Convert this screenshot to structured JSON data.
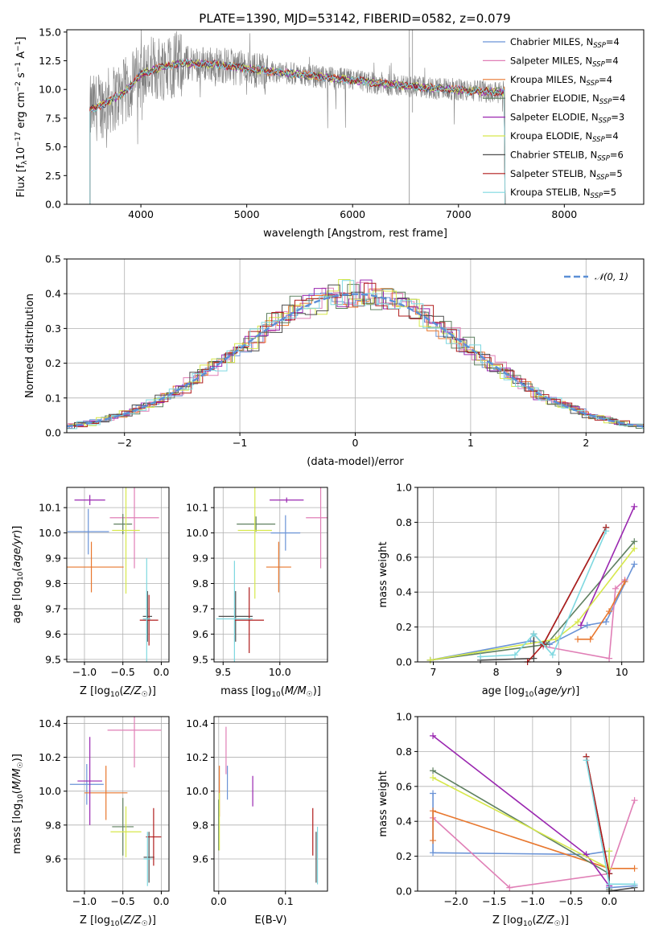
{
  "figure_title": "PLATE=1390, MJD=53142, FIBERID=0582, z=0.079",
  "series": [
    {
      "key": "chabrier_miles",
      "color": "#6a93d6",
      "label_base": "Chabrier MILES, N",
      "label_sub": "SSP",
      "label_tail": "=4"
    },
    {
      "key": "salpeter_miles",
      "color": "#e07fb6",
      "label_base": "Salpeter MILES, N",
      "label_sub": "SSP",
      "label_tail": "=4"
    },
    {
      "key": "kroupa_miles",
      "color": "#e8772e",
      "label_base": "Kroupa MILES, N",
      "label_sub": "SSP",
      "label_tail": "=4"
    },
    {
      "key": "chabrier_elodie",
      "color": "#5f8060",
      "label_base": "Chabrier ELODIE, N",
      "label_sub": "SSP",
      "label_tail": "=4"
    },
    {
      "key": "salpeter_elodie",
      "color": "#9a27b0",
      "label_base": "Salpeter ELODIE, N",
      "label_sub": "SSP",
      "label_tail": "=3"
    },
    {
      "key": "kroupa_elodie",
      "color": "#d7e84c",
      "label_base": "Kroupa ELODIE, N",
      "label_sub": "SSP",
      "label_tail": "=4"
    },
    {
      "key": "chabrier_stelib",
      "color": "#4d4d4d",
      "label_base": "Chabrier STELIB, N",
      "label_sub": "SSP",
      "label_tail": "=6"
    },
    {
      "key": "salpeter_stelib",
      "color": "#b01c1c",
      "label_base": "Salpeter STELIB, N",
      "label_sub": "SSP",
      "label_tail": "=5"
    },
    {
      "key": "kroupa_stelib",
      "color": "#7ed8e0",
      "label_base": "Kroupa STELIB, N",
      "label_sub": "SSP",
      "label_tail": "=5"
    }
  ],
  "chart_data": [
    {
      "id": "spectrum",
      "type": "line",
      "title": "PLATE=1390, MJD=53142, FIBERID=0582, z=0.079",
      "xlabel": "wavelength [Angstrom, rest frame]",
      "ylabel": "Flux [f_λ 10^-17 erg cm^-2 s^-1 A^-1]",
      "xlim": [
        3300,
        8750
      ],
      "ylim": [
        0,
        15.2
      ],
      "xticks": [
        4000,
        5000,
        6000,
        7000,
        8000
      ],
      "yticks": [
        0.0,
        2.5,
        5.0,
        7.5,
        10.0,
        12.5,
        15.0
      ],
      "observed_color": "#808080",
      "continuum_knots": [
        [
          3520,
          8.2
        ],
        [
          3700,
          9.0
        ],
        [
          3850,
          9.8
        ],
        [
          4000,
          11.3
        ],
        [
          4200,
          12.0
        ],
        [
          4400,
          12.3
        ],
        [
          4700,
          12.2
        ],
        [
          5000,
          11.8
        ],
        [
          5300,
          11.5
        ],
        [
          5600,
          11.2
        ],
        [
          5900,
          10.9
        ],
        [
          6200,
          10.6
        ],
        [
          6500,
          10.3
        ],
        [
          6800,
          10.1
        ],
        [
          7100,
          9.9
        ],
        [
          7400,
          9.8
        ]
      ],
      "model_wavelength_range": [
        3520,
        7440
      ],
      "observed_wavelength_range": [
        3520,
        7440
      ],
      "legend_loc": "upper right"
    },
    {
      "id": "residuals",
      "type": "line",
      "xlabel": "(data-model)/error",
      "ylabel": "Normed distribution",
      "xlim": [
        -2.5,
        2.5
      ],
      "ylim": [
        0,
        0.5
      ],
      "xticks": [
        -2,
        -1,
        0,
        1,
        2
      ],
      "xtick_labels": [
        "−2",
        "−1",
        "0",
        "1",
        "2"
      ],
      "yticks": [
        0.0,
        0.1,
        0.2,
        0.3,
        0.4,
        0.5
      ],
      "reference": {
        "name": "𝒩(0, 1)",
        "mean": 0,
        "sigma": 1,
        "color": "#5b8fd6",
        "style": "dashed"
      },
      "bin_width": 0.1,
      "grid": true,
      "legend_loc": "upper right"
    },
    {
      "id": "age_vs_Z",
      "type": "scatter",
      "xlabel": "Z [log10(Z/Z☉)]",
      "ylabel": "age [log10(age/yr)]",
      "xlim": [
        -1.23,
        0.1
      ],
      "ylim": [
        9.49,
        10.18
      ],
      "xticks": [
        -1.0,
        -0.5,
        0.0
      ],
      "xtick_labels": [
        "−1.0",
        "−0.5",
        "0.0"
      ],
      "yticks": [
        9.5,
        9.6,
        9.7,
        9.8,
        9.9,
        10.0,
        10.1
      ],
      "grid": true,
      "points": [
        {
          "series": "chabrier_miles",
          "x": -0.95,
          "xerr": 0.27,
          "y": 10.005,
          "yerr": 0.09
        },
        {
          "series": "salpeter_miles",
          "x": -0.35,
          "xerr": 0.32,
          "y": 10.06,
          "yerr": 0.2
        },
        {
          "series": "kroupa_miles",
          "x": -0.91,
          "xerr": 0.42,
          "y": 9.865,
          "yerr": 0.1
        },
        {
          "series": "chabrier_elodie",
          "x": -0.5,
          "xerr": 0.12,
          "y": 10.035,
          "yerr": 0.04
        },
        {
          "series": "salpeter_elodie",
          "x": -0.93,
          "xerr": 0.2,
          "y": 10.13,
          "yerr": 0.02
        },
        {
          "series": "kroupa_elodie",
          "x": -0.46,
          "xerr": 0.18,
          "y": 10.01,
          "yerr": 0.25
        },
        {
          "series": "chabrier_stelib",
          "x": -0.18,
          "xerr": 0.06,
          "y": 9.67,
          "yerr": 0.1
        },
        {
          "series": "salpeter_stelib",
          "x": -0.16,
          "xerr": 0.12,
          "y": 9.655,
          "yerr": 0.1
        },
        {
          "series": "kroupa_stelib",
          "x": -0.19,
          "xerr": 0.05,
          "y": 9.66,
          "yerr": 0.24
        }
      ]
    },
    {
      "id": "age_vs_mass",
      "type": "scatter",
      "xlabel": "mass [log10(M/M☉)]",
      "ylabel": "",
      "xlim": [
        9.42,
        10.42
      ],
      "ylim": [
        9.49,
        10.18
      ],
      "xticks": [
        9.5,
        10.0
      ],
      "xtick_labels": [
        "9.5",
        "10.0"
      ],
      "yticks": [
        9.5,
        9.6,
        9.7,
        9.8,
        9.9,
        10.0,
        10.1
      ],
      "grid": true,
      "points": [
        {
          "series": "chabrier_miles",
          "x": 10.05,
          "xerr": 0.13,
          "y": 10.0,
          "yerr": 0.07
        },
        {
          "series": "salpeter_miles",
          "x": 10.36,
          "xerr": 0.13,
          "y": 10.06,
          "yerr": 0.2
        },
        {
          "series": "kroupa_miles",
          "x": 9.99,
          "xerr": 0.11,
          "y": 9.865,
          "yerr": 0.1
        },
        {
          "series": "chabrier_elodie",
          "x": 9.79,
          "xerr": 0.17,
          "y": 10.035,
          "yerr": 0.03
        },
        {
          "series": "salpeter_elodie",
          "x": 10.06,
          "xerr": 0.15,
          "y": 10.13,
          "yerr": 0.01
        },
        {
          "series": "kroupa_elodie",
          "x": 9.78,
          "xerr": 0.15,
          "y": 10.01,
          "yerr": 0.27
        },
        {
          "series": "chabrier_stelib",
          "x": 9.61,
          "xerr": 0.15,
          "y": 9.67,
          "yerr": 0.1
        },
        {
          "series": "salpeter_stelib",
          "x": 9.73,
          "xerr": 0.13,
          "y": 9.655,
          "yerr": 0.13
        },
        {
          "series": "kroupa_stelib",
          "x": 9.6,
          "xerr": 0.16,
          "y": 9.66,
          "yerr": 0.23
        }
      ]
    },
    {
      "id": "massweight_vs_age",
      "type": "line",
      "xlabel": "age [log10(age/yr)]",
      "ylabel": "mass weight",
      "xlim": [
        6.75,
        10.35
      ],
      "ylim": [
        0,
        1
      ],
      "xticks": [
        7,
        8,
        9,
        10
      ],
      "yticks": [
        0.0,
        0.2,
        0.4,
        0.6,
        0.8,
        1.0
      ],
      "grid": true,
      "lines": [
        {
          "series": "chabrier_miles",
          "points": [
            [
              6.95,
              0.01
            ],
            [
              8.55,
              0.12
            ],
            [
              8.85,
              0.1
            ],
            [
              9.45,
              0.21
            ],
            [
              9.75,
              0.23
            ],
            [
              10.2,
              0.56
            ]
          ]
        },
        {
          "series": "salpeter_miles",
          "points": [
            [
              8.75,
              0.09
            ],
            [
              9.8,
              0.02
            ],
            [
              9.9,
              0.42
            ],
            [
              10.05,
              0.47
            ]
          ]
        },
        {
          "series": "kroupa_miles",
          "points": [
            [
              9.3,
              0.13
            ],
            [
              9.5,
              0.13
            ],
            [
              9.8,
              0.29
            ],
            [
              10.05,
              0.46
            ]
          ]
        },
        {
          "series": "chabrier_elodie",
          "points": [
            [
              6.95,
              0.01
            ],
            [
              8.8,
              0.1
            ],
            [
              10.2,
              0.69
            ]
          ]
        },
        {
          "series": "salpeter_elodie",
          "points": [
            [
              9.35,
              0.21
            ],
            [
              10.2,
              0.89
            ]
          ]
        },
        {
          "series": "kroupa_elodie",
          "points": [
            [
              6.95,
              0.01
            ],
            [
              8.95,
              0.13
            ],
            [
              9.3,
              0.23
            ],
            [
              10.2,
              0.65
            ]
          ]
        },
        {
          "series": "chabrier_stelib",
          "points": [
            [
              7.75,
              0.01
            ],
            [
              8.6,
              0.02
            ],
            [
              8.6,
              0.16
            ],
            [
              8.75,
              0.1
            ],
            [
              9.75,
              0.77
            ]
          ]
        },
        {
          "series": "salpeter_stelib",
          "points": [
            [
              8.5,
              0.0
            ],
            [
              8.75,
              0.1
            ],
            [
              9.75,
              0.77
            ]
          ]
        },
        {
          "series": "kroupa_stelib",
          "points": [
            [
              7.75,
              0.03
            ],
            [
              8.3,
              0.04
            ],
            [
              8.6,
              0.16
            ],
            [
              8.9,
              0.04
            ],
            [
              9.75,
              0.75
            ]
          ]
        }
      ]
    },
    {
      "id": "mass_vs_Z",
      "type": "scatter",
      "xlabel": "Z [log10(Z/Z☉)]",
      "ylabel": "mass [log10(M/M☉)]",
      "xlim": [
        -1.23,
        0.1
      ],
      "ylim": [
        9.41,
        10.44
      ],
      "xticks": [
        -1.0,
        -0.5,
        0.0
      ],
      "xtick_labels": [
        "−1.0",
        "−0.5",
        "0.0"
      ],
      "yticks": [
        9.6,
        9.8,
        10.0,
        10.2,
        10.4
      ],
      "grid": true,
      "points": [
        {
          "series": "chabrier_miles",
          "x": -0.97,
          "xerr": 0.22,
          "y": 10.04,
          "yerr": 0.12
        },
        {
          "series": "salpeter_miles",
          "x": -0.35,
          "xerr": 0.35,
          "y": 10.36,
          "yerr": 0.22
        },
        {
          "series": "kroupa_miles",
          "x": -0.72,
          "xerr": 0.28,
          "y": 9.99,
          "yerr": 0.16
        },
        {
          "series": "chabrier_elodie",
          "x": -0.5,
          "xerr": 0.14,
          "y": 9.79,
          "yerr": 0.17
        },
        {
          "series": "salpeter_elodie",
          "x": -0.93,
          "xerr": 0.16,
          "y": 10.06,
          "yerr": 0.26
        },
        {
          "series": "kroupa_elodie",
          "x": -0.46,
          "xerr": 0.2,
          "y": 9.76,
          "yerr": 0.15
        },
        {
          "series": "chabrier_stelib",
          "x": -0.16,
          "xerr": 0.07,
          "y": 9.61,
          "yerr": 0.15
        },
        {
          "series": "salpeter_stelib",
          "x": -0.1,
          "xerr": 0.1,
          "y": 9.73,
          "yerr": 0.17
        },
        {
          "series": "kroupa_stelib",
          "x": -0.18,
          "xerr": 0.05,
          "y": 9.6,
          "yerr": 0.16
        }
      ]
    },
    {
      "id": "mass_vs_EBV",
      "type": "scatter",
      "xlabel": "E(B-V)",
      "ylabel": "",
      "xlim": [
        -0.007,
        0.163
      ],
      "ylim": [
        9.41,
        10.44
      ],
      "xticks": [
        0.0,
        0.1
      ],
      "xtick_labels": [
        "0.0",
        "0.1"
      ],
      "yticks": [
        9.6,
        9.8,
        10.0,
        10.2,
        10.4
      ],
      "grid": true,
      "points": [
        {
          "series": "chabrier_miles",
          "x": 0.013,
          "y": 10.05,
          "yerr": 0.1
        },
        {
          "series": "salpeter_miles",
          "x": 0.011,
          "y": 10.24,
          "yerr": 0.14
        },
        {
          "series": "kroupa_miles",
          "x": 0.001,
          "y": 10.0,
          "yerr": 0.15
        },
        {
          "series": "chabrier_elodie",
          "x": 0.0,
          "y": 9.8,
          "yerr": 0.15
        },
        {
          "series": "salpeter_elodie",
          "x": 0.051,
          "y": 10.0,
          "yerr": 0.09
        },
        {
          "series": "kroupa_elodie",
          "x": 0.001,
          "y": 9.82,
          "yerr": 0.17
        },
        {
          "series": "chabrier_stelib",
          "x": 0.146,
          "y": 9.61,
          "yerr": 0.15
        },
        {
          "series": "salpeter_stelib",
          "x": 0.141,
          "y": 9.76,
          "yerr": 0.14
        },
        {
          "series": "kroupa_stelib",
          "x": 0.148,
          "y": 9.62,
          "yerr": 0.17
        }
      ]
    },
    {
      "id": "massweight_vs_Z",
      "type": "line",
      "xlabel": "Z [log10(Z/Z☉)]",
      "ylabel": "mass weight",
      "xlim": [
        -2.5,
        0.45
      ],
      "ylim": [
        0,
        1
      ],
      "xticks": [
        -2.0,
        -1.5,
        -1.0,
        -0.5,
        0.0
      ],
      "xtick_labels": [
        "−2.0",
        "−1.5",
        "−1.0",
        "−0.5",
        "0.0"
      ],
      "yticks": [
        0.0,
        0.2,
        0.4,
        0.6,
        0.8,
        1.0
      ],
      "grid": true,
      "lines": [
        {
          "series": "chabrier_miles",
          "points": [
            [
              -2.3,
              0.56
            ],
            [
              -2.3,
              0.22
            ],
            [
              -0.3,
              0.21
            ],
            [
              0.0,
              0.23
            ],
            [
              0.0,
              0.02
            ],
            [
              0.33,
              0.03
            ]
          ]
        },
        {
          "series": "salpeter_miles",
          "points": [
            [
              -2.3,
              0.42
            ],
            [
              -1.3,
              0.02
            ],
            [
              0.0,
              0.1
            ],
            [
              0.33,
              0.52
            ]
          ]
        },
        {
          "series": "kroupa_miles",
          "points": [
            [
              -2.3,
              0.29
            ],
            [
              -2.3,
              0.46
            ],
            [
              0.0,
              0.13
            ],
            [
              0.33,
              0.13
            ]
          ]
        },
        {
          "series": "chabrier_elodie",
          "points": [
            [
              -2.3,
              0.69
            ],
            [
              0.0,
              0.1
            ],
            [
              0.0,
              0.01
            ]
          ]
        },
        {
          "series": "salpeter_elodie",
          "points": [
            [
              -2.3,
              0.89
            ],
            [
              -0.3,
              0.21
            ],
            [
              0.0,
              0.03
            ]
          ]
        },
        {
          "series": "kroupa_elodie",
          "points": [
            [
              -2.3,
              0.65
            ],
            [
              0.0,
              0.13
            ],
            [
              0.0,
              0.23
            ]
          ]
        },
        {
          "series": "chabrier_stelib",
          "points": [
            [
              -0.3,
              0.77
            ],
            [
              0.0,
              0.1
            ],
            [
              0.0,
              0.0
            ],
            [
              0.33,
              0.02
            ]
          ]
        },
        {
          "series": "salpeter_stelib",
          "points": [
            [
              -0.3,
              0.77
            ],
            [
              0.0,
              0.1
            ]
          ]
        },
        {
          "series": "kroupa_stelib",
          "points": [
            [
              -0.3,
              0.75
            ],
            [
              0.0,
              0.04
            ],
            [
              0.33,
              0.04
            ]
          ]
        }
      ]
    }
  ]
}
